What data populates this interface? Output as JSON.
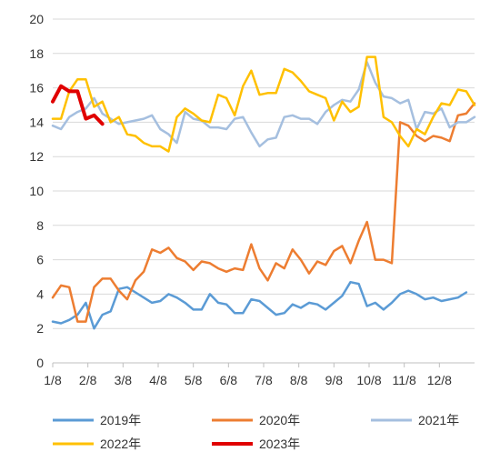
{
  "chart_data": {
    "type": "line",
    "title": "",
    "xlabel": "",
    "ylabel": "",
    "ylim": [
      0,
      20
    ],
    "yticks": [
      0,
      2,
      4,
      6,
      8,
      10,
      12,
      14,
      16,
      18,
      20
    ],
    "x_tick_labels": [
      "1/8",
      "2/8",
      "3/8",
      "4/8",
      "5/8",
      "6/8",
      "7/8",
      "8/8",
      "9/8",
      "10/8",
      "11/8",
      "12/8"
    ],
    "grid": "horizontal",
    "legend_position": "bottom",
    "series": [
      {
        "name": "2019年",
        "color": "#5b9bd5",
        "values": [
          2.4,
          2.3,
          2.5,
          2.8,
          3.5,
          2.0,
          2.8,
          3.0,
          4.3,
          4.4,
          4.1,
          3.8,
          3.5,
          3.6,
          4.0,
          3.8,
          3.5,
          3.1,
          3.1,
          4.0,
          3.5,
          3.4,
          2.9,
          2.9,
          3.7,
          3.6,
          3.2,
          2.8,
          2.9,
          3.4,
          3.2,
          3.5,
          3.4,
          3.1,
          3.5,
          3.9,
          4.7,
          4.6,
          3.3,
          3.5,
          3.1,
          3.5,
          4.0,
          4.2,
          4.0,
          3.7,
          3.8,
          3.6,
          3.7,
          3.8,
          4.1
        ]
      },
      {
        "name": "2020年",
        "color": "#ed7d31",
        "values": [
          3.8,
          4.5,
          4.4,
          2.4,
          2.4,
          4.4,
          4.9,
          4.9,
          4.2,
          3.7,
          4.8,
          5.3,
          6.6,
          6.4,
          6.7,
          6.1,
          5.9,
          5.4,
          5.9,
          5.8,
          5.5,
          5.3,
          5.5,
          5.4,
          6.9,
          5.5,
          4.8,
          5.8,
          5.5,
          6.6,
          6.0,
          5.2,
          5.9,
          5.7,
          6.5,
          6.8,
          5.8,
          7.1,
          8.2,
          6.0,
          6.0,
          5.8,
          14.0,
          13.8,
          13.2,
          12.9,
          13.2,
          13.1,
          12.9,
          14.4,
          14.5,
          15.1
        ]
      },
      {
        "name": "2021年",
        "color": "#a5bfdf",
        "values": [
          13.8,
          13.6,
          14.3,
          14.6,
          14.8,
          15.4,
          14.5,
          14.2,
          13.9,
          14.0,
          14.1,
          14.2,
          14.4,
          13.6,
          13.3,
          12.8,
          14.6,
          14.2,
          14.1,
          13.7,
          13.7,
          13.6,
          14.2,
          14.3,
          13.4,
          12.6,
          13.0,
          13.1,
          14.3,
          14.4,
          14.2,
          14.2,
          13.9,
          14.6,
          15.0,
          15.3,
          15.2,
          15.9,
          17.5,
          16.3,
          15.5,
          15.4,
          15.1,
          15.3,
          13.6,
          14.6,
          14.5,
          14.8,
          13.7,
          14.0,
          14.0,
          14.3
        ]
      },
      {
        "name": "2022年",
        "color": "#ffc000",
        "values": [
          14.2,
          14.2,
          15.8,
          16.5,
          16.5,
          14.9,
          15.2,
          14.0,
          14.3,
          13.3,
          13.2,
          12.8,
          12.6,
          12.6,
          12.3,
          14.3,
          14.8,
          14.5,
          14.1,
          14.0,
          15.6,
          15.4,
          14.4,
          16.1,
          17.0,
          15.6,
          15.7,
          15.7,
          17.1,
          16.9,
          16.4,
          15.8,
          15.6,
          15.4,
          14.1,
          15.2,
          14.6,
          14.9,
          17.8,
          17.8,
          14.3,
          14.0,
          13.2,
          12.6,
          13.6,
          13.3,
          14.3,
          15.1,
          15.0,
          15.9,
          15.8,
          15.0
        ]
      },
      {
        "name": "2023年",
        "color": "#e00000",
        "values": [
          15.2,
          16.1,
          15.8,
          15.8,
          14.2,
          14.4,
          13.9
        ]
      }
    ]
  }
}
